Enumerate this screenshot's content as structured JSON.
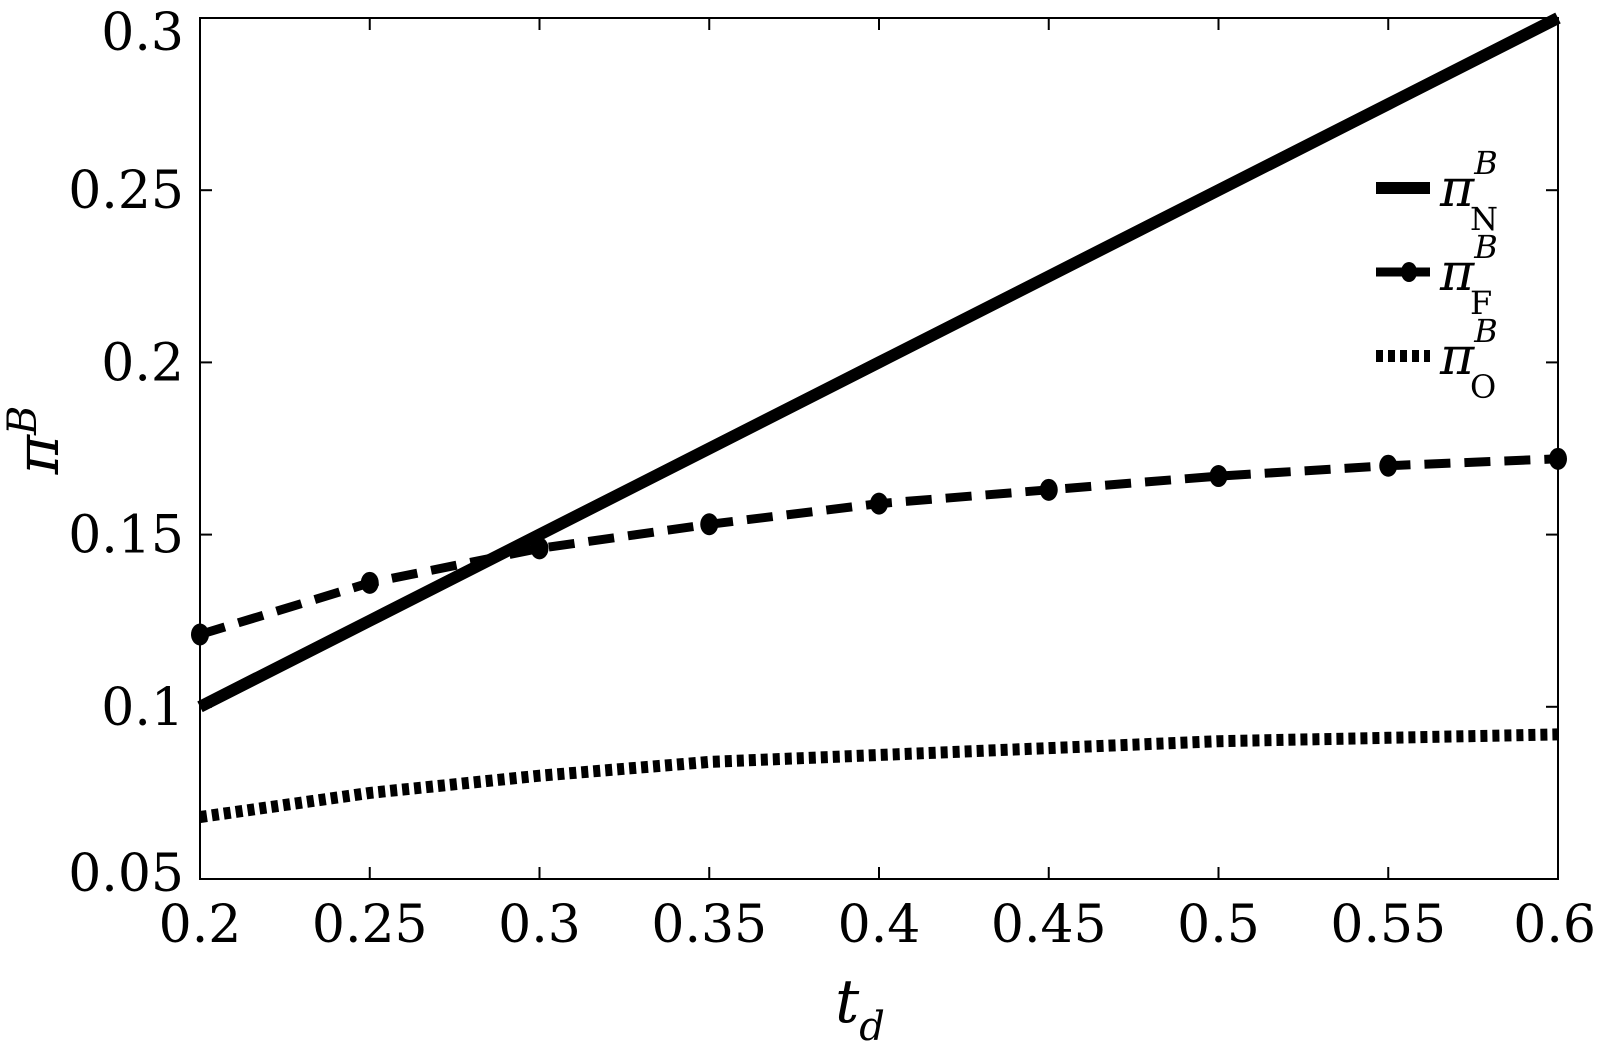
{
  "chart_data": {
    "type": "line",
    "xlabel": {
      "main": "t",
      "sub": "d"
    },
    "ylabel": {
      "main": "π",
      "sup": "B"
    },
    "xlim": [
      0.2,
      0.6
    ],
    "ylim": [
      0.05,
      0.3
    ],
    "xticks": [
      0.2,
      0.25,
      0.3,
      0.35,
      0.4,
      0.45,
      0.5,
      0.55,
      0.6
    ],
    "xtick_labels": [
      "0.2",
      "0.25",
      "0.3",
      "0.35",
      "0.4",
      "0.45",
      "0.5",
      "0.55",
      "0.6"
    ],
    "yticks": [
      0.05,
      0.1,
      0.15,
      0.2,
      0.25,
      0.3
    ],
    "ytick_labels": [
      "0.05",
      "0.1",
      "0.15",
      "0.2",
      "0.25",
      "0.3"
    ],
    "grid": false,
    "legend_position": "top-right",
    "x": [
      0.2,
      0.25,
      0.3,
      0.35,
      0.4,
      0.45,
      0.5,
      0.55,
      0.6
    ],
    "series": [
      {
        "name": "π_N^B",
        "label_main": "π",
        "label_sub": "N",
        "label_sup": "B",
        "style": "solid",
        "color": "#000000",
        "values": [
          0.1,
          0.125,
          0.15,
          0.175,
          0.2,
          0.225,
          0.25,
          0.275,
          0.3
        ]
      },
      {
        "name": "π_F^B",
        "label_main": "π",
        "label_sub": "F",
        "label_sup": "B",
        "style": "dashed-circle",
        "color": "#000000",
        "values": [
          0.121,
          0.136,
          0.146,
          0.153,
          0.159,
          0.163,
          0.167,
          0.17,
          0.172
        ]
      },
      {
        "name": "π_O^B",
        "label_main": "π",
        "label_sub": "O",
        "label_sup": "B",
        "style": "dotted",
        "color": "#000000",
        "values": [
          0.068,
          0.075,
          0.08,
          0.084,
          0.086,
          0.088,
          0.09,
          0.091,
          0.092
        ]
      }
    ]
  }
}
